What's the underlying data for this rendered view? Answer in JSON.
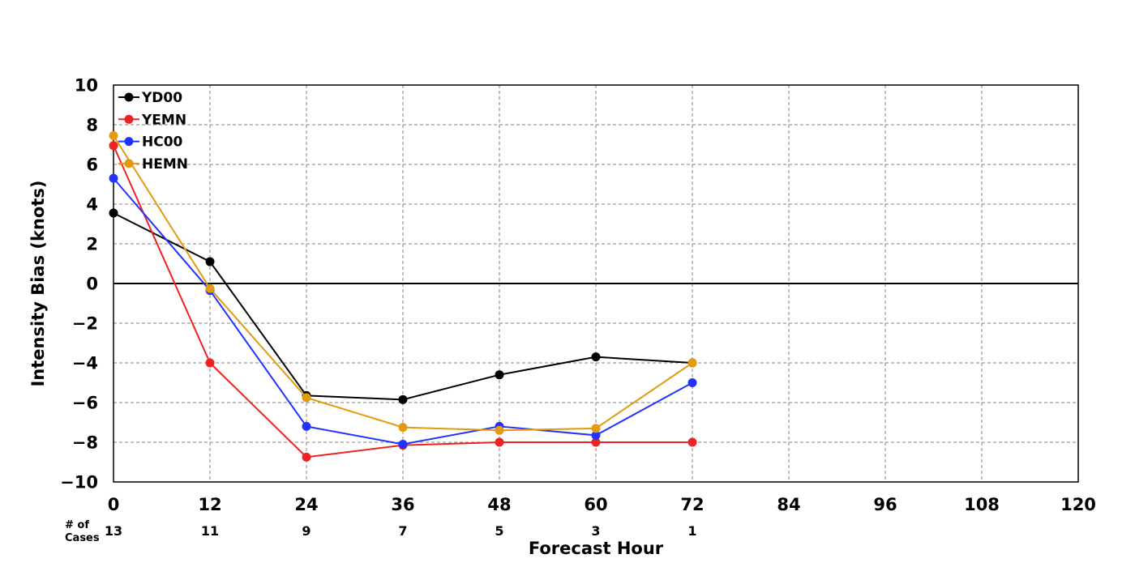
{
  "chart_data": {
    "type": "line",
    "xlabel": "Forecast Hour",
    "ylabel": "Intensity Bias (knots)",
    "xlim": [
      0,
      120
    ],
    "ylim": [
      -10,
      10
    ],
    "xticks": [
      0,
      12,
      24,
      36,
      48,
      60,
      72,
      84,
      96,
      108,
      120
    ],
    "yticks": [
      -10,
      -8,
      -6,
      -4,
      -2,
      0,
      2,
      4,
      6,
      8,
      10
    ],
    "ytick_labels": [
      "−10",
      "−8",
      "−6",
      "−4",
      "−2",
      "0",
      "2",
      "4",
      "6",
      "8",
      "10"
    ],
    "grid": true,
    "zero_line": true,
    "legend_position": "top-left",
    "x": [
      0,
      12,
      24,
      36,
      48,
      60,
      72
    ],
    "series": [
      {
        "name": "YD00",
        "color": "#000000",
        "values": [
          3.55,
          1.1,
          -5.65,
          -5.85,
          -4.6,
          -3.7,
          -4.0
        ]
      },
      {
        "name": "YEMN",
        "color": "#ee2222",
        "values": [
          6.95,
          -4.0,
          -8.75,
          -8.15,
          -8.0,
          -8.0,
          -8.0
        ]
      },
      {
        "name": "HC00",
        "color": "#2233ff",
        "values": [
          5.3,
          -0.35,
          -7.2,
          -8.1,
          -7.2,
          -7.65,
          -5.0
        ]
      },
      {
        "name": "HEMN",
        "color": "#e39b0e",
        "values": [
          7.45,
          -0.25,
          -5.75,
          -7.25,
          -7.4,
          -7.3,
          -4.0
        ]
      }
    ],
    "cases": {
      "caption_line1": "# of",
      "caption_line2": "Cases",
      "hours": [
        0,
        12,
        24,
        36,
        48,
        60,
        72
      ],
      "counts": [
        "13",
        "11",
        "9",
        "7",
        "5",
        "3",
        "1"
      ]
    }
  }
}
